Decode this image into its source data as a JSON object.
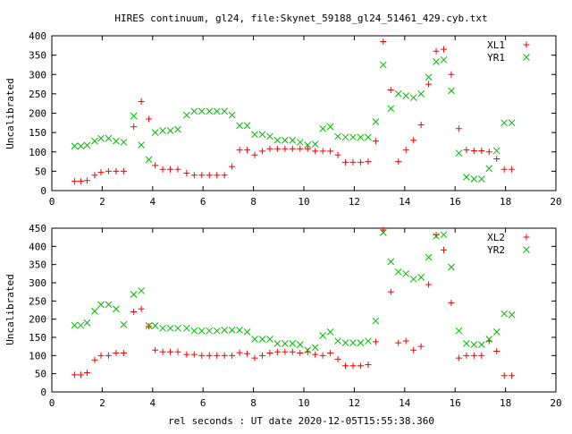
{
  "title": "HIRES continuum, gl24, file:Skynet_59188_gl24_51461_429.cyb.txt",
  "xlabel": "rel seconds : UT date 2020-12-05T15:55:38.360",
  "colors": {
    "red": "#ff0000",
    "green": "#00bb00",
    "axis": "#000000"
  },
  "chart_data": [
    {
      "type": "scatter",
      "title": "HIRES continuum, gl24, file:Skynet_59188_gl24_51461_429.cyb.txt",
      "xlabel": "",
      "ylabel": "Uncalibrated",
      "xlim": [
        0,
        20
      ],
      "ylim": [
        0,
        400
      ],
      "xticks": [
        "0",
        "2",
        "4",
        "6",
        "8",
        "10",
        "12",
        "14",
        "16",
        "18",
        "20"
      ],
      "yticks": [
        "0",
        "50",
        "100",
        "150",
        "200",
        "250",
        "300",
        "350",
        "400"
      ],
      "grid": false,
      "legend_position": "top-right",
      "series": [
        {
          "name": "XL1",
          "marker": "plus",
          "color": "#ff0000",
          "points": [
            [
              0.9,
              24
            ],
            [
              1.15,
              24
            ],
            [
              1.4,
              26
            ],
            [
              1.7,
              40
            ],
            [
              1.95,
              47
            ],
            [
              2.25,
              50
            ],
            [
              2.55,
              50
            ],
            [
              2.85,
              50
            ],
            [
              3.25,
              165
            ],
            [
              3.55,
              230
            ],
            [
              3.85,
              185
            ],
            [
              4.1,
              65
            ],
            [
              4.4,
              55
            ],
            [
              4.7,
              55
            ],
            [
              5.0,
              55
            ],
            [
              5.35,
              45
            ],
            [
              5.65,
              40
            ],
            [
              5.95,
              40
            ],
            [
              6.25,
              40
            ],
            [
              6.55,
              40
            ],
            [
              6.85,
              40
            ],
            [
              7.15,
              62
            ],
            [
              7.45,
              105
            ],
            [
              7.75,
              105
            ],
            [
              8.05,
              92
            ],
            [
              8.35,
              102
            ],
            [
              8.65,
              108
            ],
            [
              8.95,
              108
            ],
            [
              9.25,
              108
            ],
            [
              9.55,
              108
            ],
            [
              9.85,
              108
            ],
            [
              10.15,
              108
            ],
            [
              10.45,
              102
            ],
            [
              10.75,
              102
            ],
            [
              11.05,
              102
            ],
            [
              11.35,
              92
            ],
            [
              11.65,
              73
            ],
            [
              11.95,
              73
            ],
            [
              12.25,
              73
            ],
            [
              12.55,
              75
            ],
            [
              12.85,
              128
            ],
            [
              13.15,
              385
            ],
            [
              13.45,
              260
            ],
            [
              13.75,
              75
            ],
            [
              14.05,
              105
            ],
            [
              14.35,
              130
            ],
            [
              14.65,
              170
            ],
            [
              14.95,
              275
            ],
            [
              15.25,
              360
            ],
            [
              15.55,
              365
            ],
            [
              15.85,
              300
            ],
            [
              16.15,
              160
            ],
            [
              16.45,
              105
            ],
            [
              16.75,
              103
            ],
            [
              17.05,
              103
            ],
            [
              17.35,
              100
            ],
            [
              17.65,
              82
            ],
            [
              17.95,
              55
            ],
            [
              18.25,
              55
            ]
          ]
        },
        {
          "name": "YR1",
          "marker": "cross",
          "color": "#00bb00",
          "points": [
            [
              0.9,
              115
            ],
            [
              1.15,
              115
            ],
            [
              1.4,
              117
            ],
            [
              1.7,
              128
            ],
            [
              1.95,
              135
            ],
            [
              2.25,
              135
            ],
            [
              2.55,
              128
            ],
            [
              2.85,
              125
            ],
            [
              3.25,
              193
            ],
            [
              3.55,
              118
            ],
            [
              3.85,
              80
            ],
            [
              4.1,
              150
            ],
            [
              4.4,
              155
            ],
            [
              4.7,
              155
            ],
            [
              5.0,
              158
            ],
            [
              5.35,
              195
            ],
            [
              5.65,
              205
            ],
            [
              5.95,
              205
            ],
            [
              6.25,
              205
            ],
            [
              6.55,
              205
            ],
            [
              6.85,
              205
            ],
            [
              7.15,
              195
            ],
            [
              7.45,
              168
            ],
            [
              7.75,
              168
            ],
            [
              8.05,
              145
            ],
            [
              8.35,
              145
            ],
            [
              8.65,
              140
            ],
            [
              8.95,
              130
            ],
            [
              9.25,
              130
            ],
            [
              9.55,
              130
            ],
            [
              9.85,
              125
            ],
            [
              10.15,
              118
            ],
            [
              10.45,
              120
            ],
            [
              10.75,
              160
            ],
            [
              11.05,
              165
            ],
            [
              11.35,
              140
            ],
            [
              11.65,
              138
            ],
            [
              11.95,
              138
            ],
            [
              12.25,
              138
            ],
            [
              12.55,
              138
            ],
            [
              12.85,
              178
            ],
            [
              13.15,
              325
            ],
            [
              13.45,
              212
            ],
            [
              13.75,
              250
            ],
            [
              14.05,
              245
            ],
            [
              14.35,
              240
            ],
            [
              14.65,
              250
            ],
            [
              14.95,
              293
            ],
            [
              15.25,
              333
            ],
            [
              15.55,
              338
            ],
            [
              15.85,
              258
            ],
            [
              16.15,
              97
            ],
            [
              16.45,
              35
            ],
            [
              16.75,
              30
            ],
            [
              17.05,
              30
            ],
            [
              17.35,
              57
            ],
            [
              17.65,
              103
            ],
            [
              17.95,
              175
            ],
            [
              18.25,
              175
            ]
          ]
        }
      ]
    },
    {
      "type": "scatter",
      "title": "",
      "xlabel": "rel seconds : UT date 2020-12-05T15:55:38.360",
      "ylabel": "Uncalibrated",
      "xlim": [
        0,
        20
      ],
      "ylim": [
        0,
        450
      ],
      "xticks": [
        "0",
        "2",
        "4",
        "6",
        "8",
        "10",
        "12",
        "14",
        "16",
        "18",
        "20"
      ],
      "yticks": [
        "0",
        "50",
        "100",
        "150",
        "200",
        "250",
        "300",
        "350",
        "400",
        "450"
      ],
      "grid": false,
      "legend_position": "top-right",
      "series": [
        {
          "name": "XL2",
          "marker": "plus",
          "color": "#ff0000",
          "points": [
            [
              0.9,
              47
            ],
            [
              1.15,
              47
            ],
            [
              1.4,
              53
            ],
            [
              1.7,
              88
            ],
            [
              1.95,
              100
            ],
            [
              2.25,
              100
            ],
            [
              2.55,
              107
            ],
            [
              2.85,
              107
            ],
            [
              3.25,
              220
            ],
            [
              3.55,
              228
            ],
            [
              3.85,
              180
            ],
            [
              4.1,
              115
            ],
            [
              4.4,
              110
            ],
            [
              4.7,
              110
            ],
            [
              5.0,
              110
            ],
            [
              5.35,
              103
            ],
            [
              5.65,
              103
            ],
            [
              5.95,
              100
            ],
            [
              6.25,
              100
            ],
            [
              6.55,
              100
            ],
            [
              6.85,
              100
            ],
            [
              7.15,
              100
            ],
            [
              7.45,
              108
            ],
            [
              7.75,
              105
            ],
            [
              8.05,
              93
            ],
            [
              8.35,
              100
            ],
            [
              8.65,
              107
            ],
            [
              8.95,
              110
            ],
            [
              9.25,
              110
            ],
            [
              9.55,
              110
            ],
            [
              9.85,
              107
            ],
            [
              10.15,
              110
            ],
            [
              10.45,
              103
            ],
            [
              10.75,
              100
            ],
            [
              11.05,
              107
            ],
            [
              11.35,
              90
            ],
            [
              11.65,
              72
            ],
            [
              11.95,
              72
            ],
            [
              12.25,
              72
            ],
            [
              12.55,
              75
            ],
            [
              12.85,
              138
            ],
            [
              13.15,
              445
            ],
            [
              13.45,
              275
            ],
            [
              13.75,
              135
            ],
            [
              14.05,
              140
            ],
            [
              14.35,
              115
            ],
            [
              14.65,
              125
            ],
            [
              14.95,
              295
            ],
            [
              15.25,
              432
            ],
            [
              15.55,
              390
            ],
            [
              15.85,
              245
            ],
            [
              16.15,
              93
            ],
            [
              16.45,
              100
            ],
            [
              16.75,
              100
            ],
            [
              17.05,
              100
            ],
            [
              17.35,
              140
            ],
            [
              17.65,
              112
            ],
            [
              17.95,
              45
            ],
            [
              18.25,
              45
            ]
          ]
        },
        {
          "name": "YR2",
          "marker": "cross",
          "color": "#00bb00",
          "points": [
            [
              0.9,
              183
            ],
            [
              1.15,
              183
            ],
            [
              1.4,
              190
            ],
            [
              1.7,
              222
            ],
            [
              1.95,
              240
            ],
            [
              2.25,
              240
            ],
            [
              2.55,
              228
            ],
            [
              2.85,
              185
            ],
            [
              3.25,
              268
            ],
            [
              3.55,
              278
            ],
            [
              3.85,
              182
            ],
            [
              4.1,
              182
            ],
            [
              4.4,
              175
            ],
            [
              4.7,
              175
            ],
            [
              5.0,
              175
            ],
            [
              5.35,
              175
            ],
            [
              5.65,
              168
            ],
            [
              5.95,
              168
            ],
            [
              6.25,
              168
            ],
            [
              6.55,
              168
            ],
            [
              6.85,
              170
            ],
            [
              7.15,
              170
            ],
            [
              7.45,
              170
            ],
            [
              7.75,
              165
            ],
            [
              8.05,
              145
            ],
            [
              8.35,
              145
            ],
            [
              8.65,
              145
            ],
            [
              8.95,
              133
            ],
            [
              9.25,
              133
            ],
            [
              9.55,
              133
            ],
            [
              9.85,
              130
            ],
            [
              10.15,
              115
            ],
            [
              10.45,
              122
            ],
            [
              10.75,
              155
            ],
            [
              11.05,
              165
            ],
            [
              11.35,
              140
            ],
            [
              11.65,
              135
            ],
            [
              11.95,
              135
            ],
            [
              12.25,
              135
            ],
            [
              12.55,
              140
            ],
            [
              12.85,
              195
            ],
            [
              13.15,
              438
            ],
            [
              13.45,
              358
            ],
            [
              13.75,
              330
            ],
            [
              14.05,
              325
            ],
            [
              14.35,
              310
            ],
            [
              14.65,
              315
            ],
            [
              14.95,
              370
            ],
            [
              15.25,
              428
            ],
            [
              15.55,
              432
            ],
            [
              15.85,
              343
            ],
            [
              16.15,
              168
            ],
            [
              16.45,
              133
            ],
            [
              16.75,
              130
            ],
            [
              17.05,
              130
            ],
            [
              17.35,
              145
            ],
            [
              17.65,
              165
            ],
            [
              17.95,
              215
            ],
            [
              18.25,
              212
            ]
          ]
        }
      ]
    }
  ]
}
